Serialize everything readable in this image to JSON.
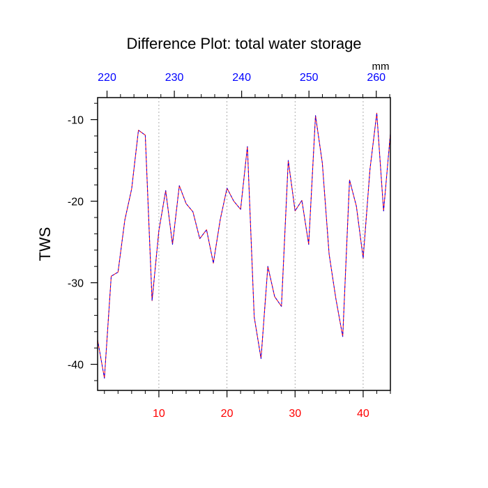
{
  "chart_data": {
    "type": "line",
    "title": "Difference Plot: total water storage",
    "ylabel": "TWS",
    "xlabel": "",
    "top_axis_units": "mm",
    "xlim": [
      1,
      44
    ],
    "ylim": [
      -43.2,
      -7.3
    ],
    "top_xlim": [
      218.6,
      262.1
    ],
    "x_ticks": [
      10,
      20,
      30,
      40
    ],
    "x_tick_labels": [
      "10",
      "20",
      "30",
      "40"
    ],
    "y_ticks": [
      -10,
      -20,
      -30,
      -40
    ],
    "y_tick_labels": [
      "-10",
      "-20",
      "-30",
      "-40"
    ],
    "top_ticks": [
      220,
      230,
      240,
      250,
      260
    ],
    "top_tick_labels": [
      "220",
      "230",
      "240",
      "250",
      "260"
    ],
    "grid": "vertical dotted at bottom ticks",
    "colors": {
      "series_a": "#ff0000",
      "series_b": "#0000ff",
      "bottom_ticks": "#ff0000",
      "top_ticks": "#0000ff",
      "grid": "#999999"
    },
    "series": [
      {
        "name": "series_a",
        "x": [
          1,
          2,
          3,
          4,
          5,
          6,
          7,
          8,
          9,
          10,
          11,
          12,
          13,
          14,
          15,
          16,
          17,
          18,
          19,
          20,
          21,
          22,
          23,
          24,
          25,
          26,
          27,
          28,
          29,
          30,
          31,
          32,
          33,
          34,
          35,
          36,
          37,
          38,
          39,
          40,
          41,
          42,
          43,
          44
        ],
        "values": [
          -37.0,
          -41.7,
          -29.2,
          -28.7,
          -22.3,
          -18.5,
          -11.3,
          -11.9,
          -32.2,
          -23.6,
          -18.7,
          -25.3,
          -18.1,
          -20.3,
          -21.3,
          -24.6,
          -23.5,
          -27.6,
          -22.3,
          -18.4,
          -20.0,
          -21.0,
          -13.3,
          -34.2,
          -39.3,
          -28.0,
          -31.7,
          -32.9,
          -15.0,
          -21.2,
          -19.9,
          -25.3,
          -9.5,
          -15.3,
          -26.5,
          -32.0,
          -36.6,
          -17.4,
          -20.6,
          -27.0,
          -16.1,
          -9.2,
          -21.2,
          -11.7
        ]
      },
      {
        "name": "series_b",
        "x": [
          1,
          2,
          3,
          4,
          5,
          6,
          7,
          8,
          9,
          10,
          11,
          12,
          13,
          14,
          15,
          16,
          17,
          18,
          19,
          20,
          21,
          22,
          23,
          24,
          25,
          26,
          27,
          28,
          29,
          30,
          31,
          32,
          33,
          34,
          35,
          36,
          37,
          38,
          39,
          40,
          41,
          42,
          43,
          44
        ],
        "values": [
          -37.0,
          -41.7,
          -29.2,
          -28.7,
          -22.3,
          -18.5,
          -11.3,
          -11.9,
          -32.2,
          -23.6,
          -18.7,
          -25.3,
          -18.1,
          -20.3,
          -21.3,
          -24.6,
          -23.5,
          -27.6,
          -22.3,
          -18.4,
          -20.0,
          -21.0,
          -13.3,
          -34.2,
          -39.3,
          -28.0,
          -31.7,
          -32.9,
          -15.0,
          -21.2,
          -19.9,
          -25.3,
          -9.5,
          -15.3,
          -26.5,
          -32.0,
          -36.6,
          -17.4,
          -20.6,
          -27.0,
          -16.1,
          -9.2,
          -21.2,
          -11.7
        ]
      }
    ]
  }
}
